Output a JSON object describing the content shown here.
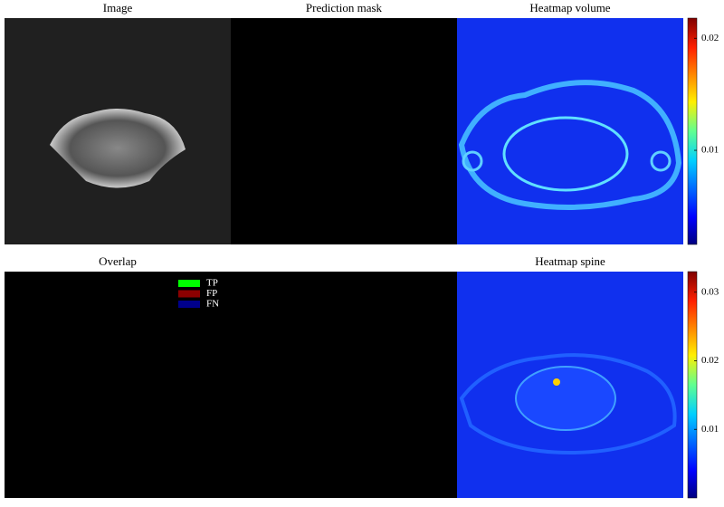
{
  "panels": [
    {
      "title": "Image"
    },
    {
      "title": "Prediction mask"
    },
    {
      "title": "Heatmap volume",
      "colorbar": {
        "range": [
          0.0016,
          0.0218
        ],
        "ticks": [
          0.01,
          0.02
        ]
      }
    },
    {
      "title": "Overlap",
      "legend": [
        {
          "label": "TP",
          "color": "#00ff00"
        },
        {
          "label": "FP",
          "color": "#8b0000"
        },
        {
          "label": "FN",
          "color": "#00008b"
        }
      ]
    },
    {
      "title": "Heatmap spine",
      "colorbar": {
        "range": [
          0,
          0.033
        ],
        "ticks": [
          0.01,
          0.02,
          0.03
        ]
      }
    }
  ]
}
